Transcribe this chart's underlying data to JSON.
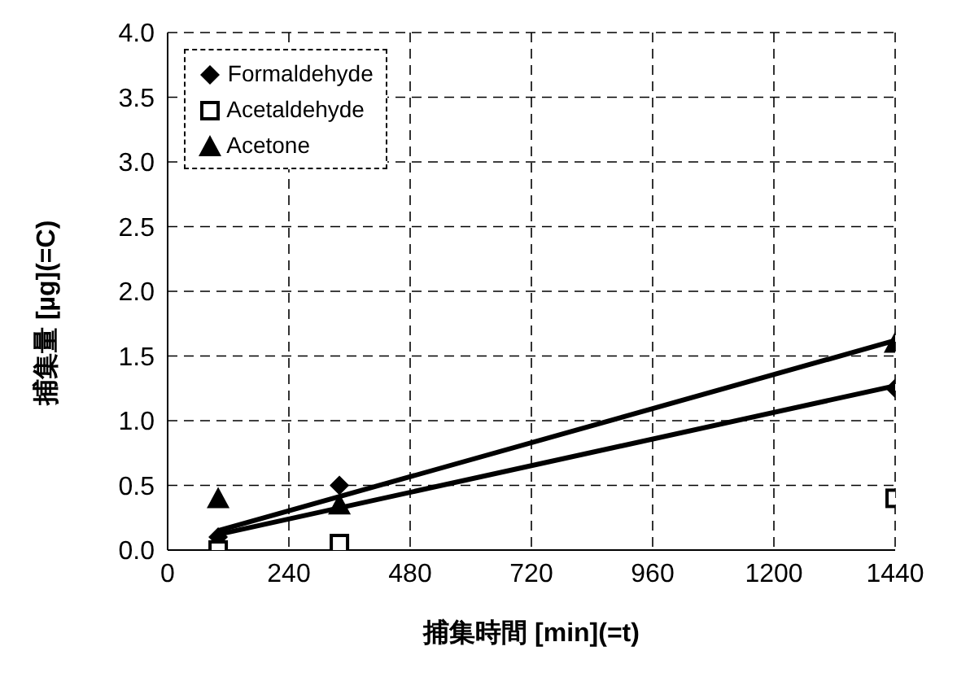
{
  "chart_data": {
    "type": "scatter",
    "xlabel": "捕集時間 [min](=t)",
    "ylabel": "捕集量 [µg](=C)",
    "xlim": [
      0,
      1440
    ],
    "xticks": [
      0,
      240,
      480,
      720,
      960,
      1200,
      1440
    ],
    "ylim": [
      0,
      4
    ],
    "yticks": [
      {
        "value": 0,
        "label": "0.0"
      },
      {
        "value": 0.5,
        "label": "0.5"
      },
      {
        "value": 1,
        "label": "1.0"
      },
      {
        "value": 1.5,
        "label": "1.5"
      },
      {
        "value": 2,
        "label": "2.0"
      },
      {
        "value": 2.5,
        "label": "2.5"
      },
      {
        "value": 3,
        "label": "3.0"
      },
      {
        "value": 3.5,
        "label": "3.5"
      },
      {
        "value": 4,
        "label": "4.0"
      }
    ],
    "grid": true,
    "legend": "top left",
    "series": [
      {
        "name": "Formaldehyde",
        "color": "#000000",
        "marker": "diamond",
        "x": [
          100,
          340,
          1440
        ],
        "values": [
          0.1,
          0.5,
          1.25
        ]
      },
      {
        "name": "Acetaldehyde",
        "color": "#000000",
        "marker": "square",
        "x": [
          100,
          340,
          1440
        ],
        "values": [
          0.0,
          0.05,
          0.4
        ]
      },
      {
        "name": "Acetone",
        "color": "#000000",
        "marker": "triangle",
        "x": [
          100,
          340,
          1440
        ],
        "values": [
          0.4,
          0.35,
          1.6
        ]
      },
      {
        "type": "line",
        "color": "#000000",
        "marker": "none",
        "x": [
          100,
          1440
        ],
        "values": [
          0.12,
          1.27
        ]
      },
      {
        "type": "line",
        "color": "#000000",
        "marker": "none",
        "x": [
          100,
          1440
        ],
        "values": [
          0.15,
          1.62
        ]
      }
    ]
  }
}
